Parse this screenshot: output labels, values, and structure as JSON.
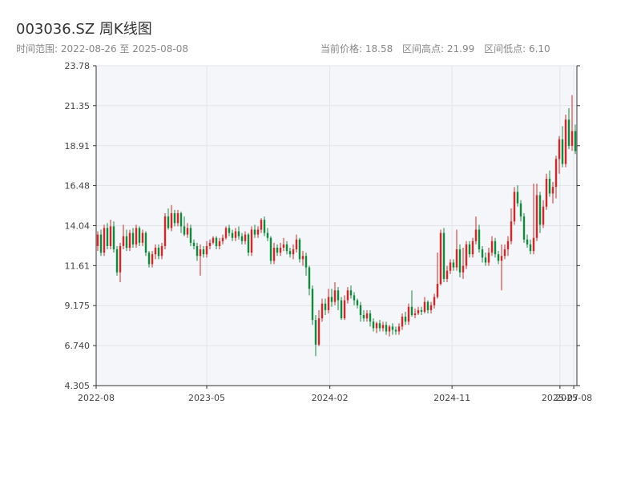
{
  "title": "003036.SZ 周K线图",
  "date_range_label": "时间范围: 2022-08-26 至 2025-08-08",
  "stats": {
    "current_price": "当前价格: 18.58",
    "range_high": "区间高点: 21.99",
    "range_low": "区间低点: 6.10"
  },
  "colors": {
    "up": "#d62728",
    "down": "#118a3d",
    "plot_bg": "#f5f6f9",
    "grid": "#e2e4ea",
    "axis": "#333333"
  },
  "chart_data": {
    "type": "candlestick",
    "ylim": [
      4.305,
      23.78
    ],
    "yticks": [
      "4.305",
      "6.740",
      "9.175",
      "11.61",
      "14.04",
      "16.48",
      "18.91",
      "21.35",
      "23.78"
    ],
    "x_start": "2022-08-26",
    "x_end": "2025-08-08",
    "xticks": [
      {
        "date": "2022-08-01",
        "label": "2022-08"
      },
      {
        "date": "2023-05-01",
        "label": "2023-05"
      },
      {
        "date": "2024-02-01",
        "label": "2024-02"
      },
      {
        "date": "2024-11-01",
        "label": "2024-11"
      },
      {
        "date": "2025-07-01",
        "label": "2025-07"
      },
      {
        "date": "2025-08-01",
        "label": "2025-08"
      }
    ],
    "grid": true,
    "candles": [
      [
        12.8,
        13.5,
        13.7,
        12.5
      ],
      [
        13.5,
        12.4,
        13.8,
        12.2
      ],
      [
        12.4,
        13.9,
        14.1,
        12.2
      ],
      [
        13.9,
        12.8,
        14.2,
        12.6
      ],
      [
        12.8,
        14.0,
        14.4,
        12.6
      ],
      [
        14.0,
        12.6,
        14.3,
        12.4
      ],
      [
        12.6,
        11.2,
        12.8,
        11.0
      ],
      [
        11.2,
        12.8,
        13.0,
        10.6
      ],
      [
        12.8,
        13.4,
        14.1,
        12.6
      ],
      [
        13.4,
        12.7,
        13.8,
        12.5
      ],
      [
        12.7,
        13.6,
        13.8,
        12.5
      ],
      [
        13.6,
        12.9,
        13.9,
        12.7
      ],
      [
        12.9,
        13.9,
        14.1,
        12.7
      ],
      [
        13.9,
        13.0,
        14.0,
        12.8
      ],
      [
        13.0,
        13.6,
        13.8,
        12.8
      ],
      [
        13.6,
        12.4,
        13.7,
        12.2
      ],
      [
        12.4,
        11.7,
        12.5,
        11.5
      ],
      [
        11.7,
        12.3,
        12.5,
        11.5
      ],
      [
        12.3,
        12.7,
        12.9,
        12.0
      ],
      [
        12.7,
        12.2,
        12.9,
        12.0
      ],
      [
        12.2,
        12.8,
        13.0,
        12.0
      ],
      [
        12.8,
        14.6,
        14.8,
        12.6
      ],
      [
        14.6,
        13.9,
        15.1,
        13.8
      ],
      [
        13.9,
        14.8,
        15.3,
        13.7
      ],
      [
        14.8,
        14.2,
        15.0,
        14.0
      ],
      [
        14.2,
        14.8,
        15.0,
        14.0
      ],
      [
        14.8,
        14.0,
        14.9,
        13.6
      ],
      [
        14.0,
        13.5,
        14.6,
        13.4
      ],
      [
        13.5,
        13.9,
        14.2,
        13.3
      ],
      [
        13.9,
        13.0,
        14.1,
        12.8
      ],
      [
        13.0,
        12.8,
        13.2,
        12.6
      ],
      [
        12.8,
        12.2,
        13.0,
        11.9
      ],
      [
        12.2,
        12.6,
        12.9,
        11.0
      ],
      [
        12.6,
        12.3,
        12.8,
        12.1
      ],
      [
        12.3,
        12.8,
        13.1,
        12.1
      ],
      [
        12.8,
        13.0,
        13.2,
        12.6
      ],
      [
        13.0,
        13.3,
        13.4,
        12.9
      ],
      [
        13.3,
        12.8,
        13.4,
        12.6
      ],
      [
        12.8,
        13.1,
        13.3,
        12.6
      ],
      [
        13.1,
        13.3,
        13.5,
        12.9
      ],
      [
        13.3,
        13.9,
        14.0,
        13.2
      ],
      [
        13.9,
        13.6,
        14.1,
        13.4
      ],
      [
        13.6,
        13.3,
        13.8,
        13.1
      ],
      [
        13.3,
        13.7,
        13.9,
        13.1
      ],
      [
        13.7,
        13.4,
        14.0,
        13.2
      ],
      [
        13.4,
        13.1,
        13.6,
        12.9
      ],
      [
        13.1,
        13.5,
        13.7,
        12.9
      ],
      [
        13.5,
        12.4,
        13.6,
        12.2
      ],
      [
        12.4,
        13.8,
        14.0,
        12.2
      ],
      [
        13.8,
        13.5,
        14.1,
        13.3
      ],
      [
        13.5,
        13.8,
        14.0,
        13.3
      ],
      [
        13.8,
        14.4,
        14.5,
        13.6
      ],
      [
        14.4,
        13.6,
        14.6,
        13.4
      ],
      [
        13.6,
        13.3,
        13.9,
        13.1
      ],
      [
        13.3,
        11.9,
        13.4,
        11.7
      ],
      [
        11.9,
        12.7,
        13.0,
        11.7
      ],
      [
        12.7,
        12.4,
        12.9,
        12.2
      ],
      [
        12.4,
        12.7,
        13.0,
        12.2
      ],
      [
        12.7,
        12.9,
        13.3,
        12.5
      ],
      [
        12.9,
        12.5,
        13.1,
        12.3
      ],
      [
        12.5,
        12.3,
        12.7,
        12.1
      ],
      [
        12.3,
        12.6,
        12.9,
        12.0
      ],
      [
        12.6,
        13.2,
        13.5,
        12.4
      ],
      [
        13.2,
        12.0,
        13.3,
        11.8
      ],
      [
        12.0,
        12.2,
        12.5,
        11.6
      ],
      [
        12.2,
        11.5,
        12.4,
        11.0
      ],
      [
        11.5,
        10.2,
        11.6,
        9.8
      ],
      [
        10.2,
        8.3,
        10.4,
        8.0
      ],
      [
        8.3,
        6.8,
        8.6,
        6.1
      ],
      [
        6.8,
        8.4,
        8.9,
        6.7
      ],
      [
        8.4,
        9.3,
        9.6,
        8.2
      ],
      [
        9.3,
        8.9,
        9.6,
        8.6
      ],
      [
        8.9,
        9.7,
        10.2,
        8.7
      ],
      [
        9.7,
        9.4,
        10.2,
        9.1
      ],
      [
        9.4,
        10.1,
        10.6,
        9.2
      ],
      [
        10.1,
        9.5,
        10.3,
        8.9
      ],
      [
        9.5,
        8.4,
        9.7,
        8.3
      ],
      [
        8.4,
        9.5,
        9.8,
        8.3
      ],
      [
        9.5,
        10.1,
        10.3,
        9.3
      ],
      [
        10.1,
        9.8,
        10.4,
        9.6
      ],
      [
        9.8,
        9.5,
        10.0,
        9.2
      ],
      [
        9.5,
        9.2,
        9.6,
        9.0
      ],
      [
        9.2,
        8.6,
        9.4,
        8.2
      ],
      [
        8.6,
        8.4,
        8.9,
        8.2
      ],
      [
        8.4,
        8.7,
        8.9,
        8.2
      ],
      [
        8.7,
        8.2,
        8.9,
        7.9
      ],
      [
        8.2,
        7.8,
        8.4,
        7.6
      ],
      [
        7.8,
        8.1,
        8.2,
        7.5
      ],
      [
        8.1,
        7.8,
        8.3,
        7.6
      ],
      [
        7.8,
        8.0,
        8.2,
        7.6
      ],
      [
        8.0,
        7.6,
        8.2,
        7.4
      ],
      [
        7.6,
        7.9,
        8.0,
        7.3
      ],
      [
        7.9,
        7.7,
        8.1,
        7.4
      ],
      [
        7.7,
        7.6,
        7.9,
        7.4
      ],
      [
        7.6,
        7.9,
        8.1,
        7.4
      ],
      [
        7.9,
        8.5,
        8.7,
        7.7
      ],
      [
        8.5,
        8.2,
        8.8,
        8.0
      ],
      [
        8.2,
        9.1,
        9.3,
        8.0
      ],
      [
        9.1,
        8.6,
        10.1,
        8.5
      ],
      [
        8.6,
        8.7,
        9.0,
        8.4
      ],
      [
        8.7,
        8.9,
        9.1,
        8.6
      ],
      [
        8.9,
        8.8,
        9.1,
        8.6
      ],
      [
        8.8,
        9.4,
        9.7,
        8.7
      ],
      [
        9.4,
        8.9,
        9.5,
        8.7
      ],
      [
        8.9,
        9.2,
        9.4,
        8.7
      ],
      [
        9.2,
        9.7,
        9.9,
        9.0
      ],
      [
        9.7,
        10.5,
        12.4,
        9.6
      ],
      [
        10.5,
        13.6,
        13.8,
        10.4
      ],
      [
        13.6,
        10.8,
        13.9,
        10.6
      ],
      [
        10.8,
        11.3,
        11.6,
        10.6
      ],
      [
        11.3,
        11.8,
        12.0,
        11.1
      ],
      [
        11.8,
        11.5,
        12.0,
        11.3
      ],
      [
        11.5,
        12.6,
        13.8,
        11.3
      ],
      [
        12.6,
        11.2,
        12.9,
        10.9
      ],
      [
        11.2,
        11.6,
        12.7,
        10.8
      ],
      [
        11.6,
        12.9,
        13.1,
        11.4
      ],
      [
        12.9,
        12.3,
        13.1,
        12.1
      ],
      [
        12.3,
        13.1,
        13.3,
        12.1
      ],
      [
        13.1,
        13.8,
        14.6,
        12.9
      ],
      [
        13.8,
        12.6,
        14.1,
        12.4
      ],
      [
        12.6,
        12.1,
        12.8,
        11.8
      ],
      [
        12.1,
        11.8,
        12.4,
        11.6
      ],
      [
        11.8,
        12.4,
        12.7,
        11.6
      ],
      [
        12.4,
        13.1,
        13.4,
        12.2
      ],
      [
        13.1,
        12.3,
        13.3,
        12.1
      ],
      [
        12.3,
        11.9,
        12.5,
        11.7
      ],
      [
        11.9,
        12.2,
        12.9,
        10.1
      ],
      [
        12.2,
        12.6,
        12.9,
        12.0
      ],
      [
        12.6,
        13.1,
        13.4,
        12.2
      ],
      [
        13.1,
        14.3,
        15.1,
        12.9
      ],
      [
        14.3,
        16.1,
        16.4,
        14.1
      ],
      [
        16.1,
        15.4,
        16.5,
        15.2
      ],
      [
        15.4,
        14.6,
        15.6,
        14.3
      ],
      [
        14.6,
        13.2,
        14.8,
        13.0
      ],
      [
        13.2,
        12.9,
        13.5,
        12.7
      ],
      [
        12.9,
        12.5,
        13.2,
        12.3
      ],
      [
        12.5,
        13.3,
        16.6,
        12.3
      ],
      [
        13.3,
        15.9,
        16.6,
        13.1
      ],
      [
        15.9,
        14.1,
        16.1,
        13.6
      ],
      [
        14.1,
        15.2,
        15.6,
        13.9
      ],
      [
        15.2,
        16.9,
        17.2,
        15.0
      ],
      [
        16.9,
        16.0,
        17.4,
        15.8
      ],
      [
        16.0,
        16.4,
        16.7,
        15.4
      ],
      [
        16.4,
        18.1,
        18.3,
        15.7
      ],
      [
        18.1,
        19.3,
        19.5,
        17.2
      ],
      [
        19.3,
        17.8,
        20.1,
        17.6
      ],
      [
        17.8,
        20.5,
        20.8,
        17.6
      ],
      [
        20.5,
        18.9,
        21.2,
        18.7
      ],
      [
        18.9,
        19.8,
        21.99,
        18.6
      ],
      [
        19.8,
        18.58,
        20.2,
        18.4
      ]
    ]
  }
}
